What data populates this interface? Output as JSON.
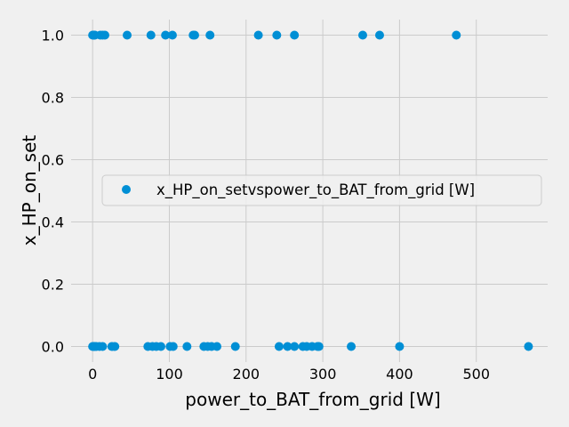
{
  "chart_data": {
    "type": "scatter",
    "xlabel": "power_to_BAT_from_grid [W]",
    "ylabel": "x_HP_on_set",
    "xlim": [
      -28,
      593
    ],
    "ylim": [
      -0.05,
      1.05
    ],
    "xticks": [
      0,
      100,
      200,
      300,
      400,
      500
    ],
    "yticks": [
      0.0,
      0.2,
      0.4,
      0.6,
      0.8,
      1.0
    ],
    "xtick_labels": [
      "0",
      "100",
      "200",
      "300",
      "400",
      "500"
    ],
    "ytick_labels": [
      "0.0",
      "0.2",
      "0.4",
      "0.6",
      "0.8",
      "1.0"
    ],
    "grid": true,
    "legend_position": "center-right",
    "series": [
      {
        "name": "x_HP_on_setvspower_to_BAT_from_grid [W]",
        "color": "#008fd5",
        "points": [
          {
            "x": 0,
            "y": 1
          },
          {
            "x": 1,
            "y": 1
          },
          {
            "x": 2,
            "y": 1
          },
          {
            "x": 3,
            "y": 1
          },
          {
            "x": 10,
            "y": 1
          },
          {
            "x": 13,
            "y": 1
          },
          {
            "x": 16,
            "y": 1
          },
          {
            "x": 45,
            "y": 1
          },
          {
            "x": 76,
            "y": 1
          },
          {
            "x": 95,
            "y": 1
          },
          {
            "x": 104,
            "y": 1
          },
          {
            "x": 131,
            "y": 1
          },
          {
            "x": 133,
            "y": 1
          },
          {
            "x": 153,
            "y": 1
          },
          {
            "x": 216,
            "y": 1
          },
          {
            "x": 240,
            "y": 1
          },
          {
            "x": 263,
            "y": 1
          },
          {
            "x": 352,
            "y": 1
          },
          {
            "x": 374,
            "y": 1
          },
          {
            "x": 474,
            "y": 1
          },
          {
            "x": 0,
            "y": 0
          },
          {
            "x": 1,
            "y": 0
          },
          {
            "x": 2,
            "y": 0
          },
          {
            "x": 3,
            "y": 0
          },
          {
            "x": 5,
            "y": 0
          },
          {
            "x": 9,
            "y": 0
          },
          {
            "x": 13,
            "y": 0
          },
          {
            "x": 25,
            "y": 0
          },
          {
            "x": 29,
            "y": 0
          },
          {
            "x": 72,
            "y": 0
          },
          {
            "x": 78,
            "y": 0
          },
          {
            "x": 83,
            "y": 0
          },
          {
            "x": 89,
            "y": 0
          },
          {
            "x": 101,
            "y": 0
          },
          {
            "x": 105,
            "y": 0
          },
          {
            "x": 123,
            "y": 0
          },
          {
            "x": 145,
            "y": 0
          },
          {
            "x": 150,
            "y": 0
          },
          {
            "x": 155,
            "y": 0
          },
          {
            "x": 162,
            "y": 0
          },
          {
            "x": 186,
            "y": 0
          },
          {
            "x": 243,
            "y": 0
          },
          {
            "x": 254,
            "y": 0
          },
          {
            "x": 263,
            "y": 0
          },
          {
            "x": 274,
            "y": 0
          },
          {
            "x": 279,
            "y": 0
          },
          {
            "x": 286,
            "y": 0
          },
          {
            "x": 293,
            "y": 0
          },
          {
            "x": 295,
            "y": 0
          },
          {
            "x": 337,
            "y": 0
          },
          {
            "x": 400,
            "y": 0
          },
          {
            "x": 568,
            "y": 0
          }
        ]
      }
    ]
  }
}
